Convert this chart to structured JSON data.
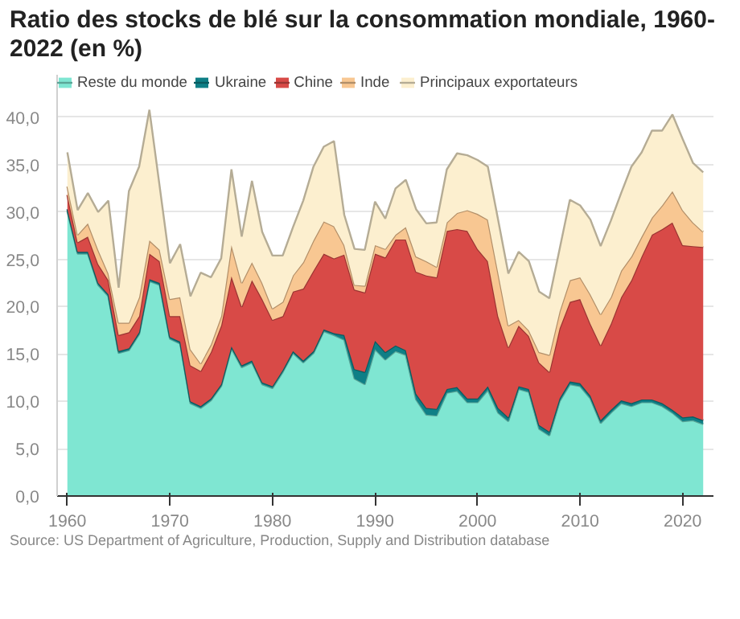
{
  "chart_data": {
    "type": "area",
    "stacked": true,
    "title": "Ratio des stocks de blé sur la consommation mondiale, 1960-2022 (en %)",
    "annotations": [
      "Source: US Department of Agriculture, Production, Supply and Distribution database"
    ],
    "x": [
      1960,
      1961,
      1962,
      1963,
      1964,
      1965,
      1966,
      1967,
      1968,
      1969,
      1970,
      1971,
      1972,
      1973,
      1974,
      1975,
      1976,
      1977,
      1978,
      1979,
      1980,
      1981,
      1982,
      1983,
      1984,
      1985,
      1986,
      1987,
      1988,
      1989,
      1990,
      1991,
      1992,
      1993,
      1994,
      1995,
      1996,
      1997,
      1998,
      1999,
      2000,
      2001,
      2002,
      2003,
      2004,
      2005,
      2006,
      2007,
      2008,
      2009,
      2010,
      2011,
      2012,
      2013,
      2014,
      2015,
      2016,
      2017,
      2018,
      2019,
      2020,
      2021,
      2022
    ],
    "series": [
      {
        "name": "Reste du monde",
        "color": "#7fe6d2",
        "values": [
          30.1,
          25.6,
          25.6,
          22.3,
          21.1,
          15.1,
          15.4,
          17.1,
          22.7,
          22.3,
          16.6,
          16.1,
          9.8,
          9.3,
          10.1,
          11.6,
          15.6,
          13.6,
          14.1,
          11.8,
          11.4,
          13.1,
          15.1,
          14.1,
          15.1,
          17.4,
          17.0,
          16.5,
          12.4,
          11.8,
          15.5,
          14.4,
          15.3,
          14.9,
          10.2,
          8.6,
          8.5,
          10.9,
          11.1,
          9.9,
          9.9,
          11.2,
          8.8,
          7.9,
          11.3,
          11.0,
          7.1,
          6.4,
          10.0,
          11.8,
          11.6,
          10.3,
          7.7,
          8.8,
          9.8,
          9.5,
          9.9,
          9.9,
          9.5,
          8.8,
          7.9,
          8.0,
          7.6
        ]
      },
      {
        "name": "Ukraine",
        "color": "#0f7f86",
        "values": [
          0.2,
          0.2,
          0.2,
          0.2,
          0.2,
          0.2,
          0.2,
          0.2,
          0.2,
          0.2,
          0.2,
          0.2,
          0.2,
          0.2,
          0.2,
          0.2,
          0.2,
          0.2,
          0.2,
          0.2,
          0.2,
          0.2,
          0.2,
          0.2,
          0.2,
          0.2,
          0.2,
          0.5,
          1.0,
          1.3,
          0.9,
          0.8,
          0.6,
          0.5,
          0.6,
          0.7,
          0.7,
          0.4,
          0.4,
          0.4,
          0.4,
          0.4,
          0.5,
          0.4,
          0.3,
          0.3,
          0.4,
          0.4,
          0.3,
          0.3,
          0.3,
          0.3,
          0.3,
          0.3,
          0.3,
          0.3,
          0.3,
          0.3,
          0.3,
          0.3,
          0.4,
          0.4,
          0.4
        ]
      },
      {
        "name": "Chine",
        "color": "#d84a47",
        "values": [
          1.5,
          1.0,
          1.6,
          2.0,
          1.5,
          1.7,
          1.7,
          1.7,
          2.7,
          2.3,
          2.2,
          2.7,
          3.8,
          3.7,
          4.9,
          6.2,
          7.4,
          6.2,
          8.5,
          8.8,
          7.0,
          5.7,
          6.3,
          7.6,
          8.5,
          8.0,
          7.9,
          8.5,
          8.4,
          8.4,
          9.2,
          10.0,
          11.2,
          11.7,
          12.9,
          14.0,
          13.9,
          16.7,
          16.7,
          17.7,
          15.8,
          13.2,
          9.7,
          7.4,
          6.4,
          5.6,
          6.6,
          6.3,
          7.4,
          8.4,
          8.9,
          7.6,
          7.9,
          9.1,
          10.9,
          13.0,
          15.1,
          17.4,
          18.4,
          19.8,
          18.2,
          18.0,
          18.3
        ]
      },
      {
        "name": "Inde",
        "color": "#f8c792",
        "values": [
          0.9,
          0.8,
          1.4,
          1.5,
          0.7,
          1.3,
          1.0,
          2.0,
          1.4,
          1.2,
          1.8,
          2.0,
          1.7,
          0.8,
          0.8,
          1.0,
          3.3,
          2.5,
          1.9,
          1.7,
          1.2,
          1.5,
          1.7,
          2.8,
          3.2,
          3.4,
          3.4,
          1.0,
          0.5,
          0.7,
          0.9,
          0.9,
          0.5,
          1.3,
          1.6,
          1.5,
          1.1,
          0.9,
          1.7,
          2.2,
          3.7,
          4.4,
          4.6,
          2.3,
          0.6,
          0.6,
          1.1,
          1.8,
          1.8,
          2.3,
          2.3,
          3.1,
          3.3,
          2.8,
          2.8,
          2.5,
          2.1,
          1.8,
          2.5,
          3.3,
          3.7,
          2.5,
          1.6
        ]
      },
      {
        "name": "Principaux exportateurs",
        "color": "#fcefcf",
        "values": [
          3.6,
          2.6,
          3.2,
          4.0,
          7.7,
          3.7,
          13.9,
          13.8,
          13.8,
          6.7,
          3.8,
          5.6,
          5.6,
          9.6,
          7.1,
          6.1,
          8.0,
          4.9,
          8.6,
          5.4,
          5.6,
          4.9,
          5.1,
          6.5,
          7.8,
          7.9,
          9.0,
          3.2,
          3.8,
          3.8,
          4.6,
          3.2,
          4.9,
          5.0,
          5.0,
          4.0,
          4.7,
          5.6,
          6.3,
          5.8,
          5.7,
          5.6,
          5.6,
          5.5,
          7.2,
          7.3,
          6.4,
          6.0,
          6.6,
          8.5,
          7.6,
          7.9,
          7.2,
          8.1,
          8.2,
          9.5,
          8.9,
          9.2,
          7.9,
          8.1,
          7.5,
          6.3,
          6.3
        ]
      }
    ],
    "xlim": [
      1959,
      2023
    ],
    "ylim": [
      0,
      44.5
    ],
    "xticks": [
      1960,
      1970,
      1980,
      1990,
      2000,
      2010,
      2020
    ],
    "yticks": [
      {
        "value": 0,
        "label": "0,0"
      },
      {
        "value": 5,
        "label": "5,0"
      },
      {
        "value": 10,
        "label": "10,0"
      },
      {
        "value": 15,
        "label": "15,0"
      },
      {
        "value": 20,
        "label": "20,0"
      },
      {
        "value": 25,
        "label": "25,0"
      },
      {
        "value": 30,
        "label": "30,0"
      },
      {
        "value": 35,
        "label": "35,0"
      },
      {
        "value": 40,
        "label": "40,0"
      }
    ],
    "grid": "y",
    "legend": "top"
  }
}
